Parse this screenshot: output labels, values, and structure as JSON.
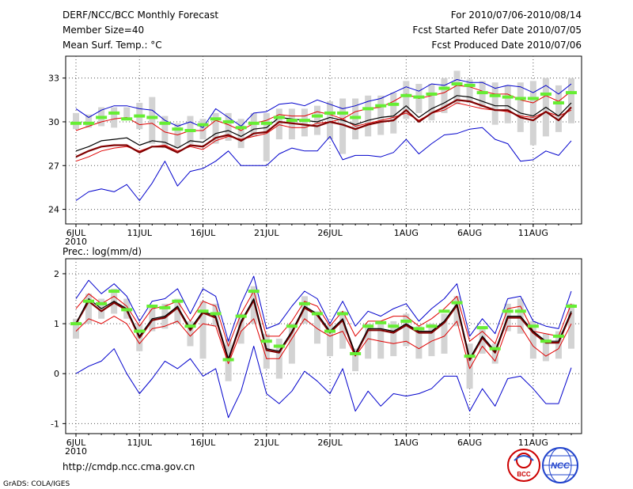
{
  "header": {
    "title": "DERF/NCC/BCC Monthly Forecast",
    "member_size": "Member Size=40",
    "variable": "Mean Surf. Temp.: °C",
    "forecast_range": "For 2010/07/06-2010/08/14",
    "started_date": "Fcst Started Refer Date 2010/07/05",
    "produced_date": "Fcst Produced Date 2010/07/06"
  },
  "footer": {
    "url": "http://cmdp.ncc.cma.gov.cn",
    "grads": "GrADS: COLA/IGES",
    "logo_bcc": "BCC",
    "logo_ncc": "NCC"
  },
  "colors": {
    "ensemble_mean": "#000000",
    "control": "#800000",
    "std_band": "#e00000",
    "min_max": "#0000cc",
    "box": "#d3d3d3",
    "climatology": "#66ee33"
  },
  "chart_data": [
    {
      "type": "line",
      "title": "Mean Surf. Temp.: °C",
      "x_dates": [
        "6JUL",
        "7JUL",
        "8JUL",
        "9JUL",
        "10JUL",
        "11JUL",
        "12JUL",
        "13JUL",
        "14JUL",
        "15JUL",
        "16JUL",
        "17JUL",
        "18JUL",
        "19JUL",
        "20JUL",
        "21JUL",
        "22JUL",
        "23JUL",
        "24JUL",
        "25JUL",
        "26JUL",
        "27JUL",
        "28JUL",
        "29JUL",
        "30JUL",
        "31JUL",
        "1AUG",
        "2AUG",
        "3AUG",
        "4AUG",
        "5AUG",
        "6AUG",
        "7AUG",
        "8AUG",
        "9AUG",
        "10AUG",
        "11AUG",
        "12AUG",
        "13AUG",
        "14AUG"
      ],
      "xtick_labels": [
        "6JUL\n2010",
        "11JUL",
        "16JUL",
        "21JUL",
        "26JUL",
        "1AUG",
        "6AUG",
        "11AUG"
      ],
      "xtick_index": [
        0,
        5,
        10,
        15,
        20,
        26,
        31,
        36
      ],
      "ylim": [
        23,
        34.5
      ],
      "yticks": [
        24,
        27,
        30,
        33
      ],
      "series": [
        {
          "name": "max",
          "values": [
            30.9,
            30.3,
            30.8,
            31.1,
            31.1,
            30.9,
            30.8,
            30.1,
            29.7,
            30.0,
            29.6,
            30.9,
            30.3,
            29.7,
            30.6,
            30.7,
            31.2,
            31.3,
            31.1,
            31.5,
            31.2,
            30.9,
            31.1,
            31.4,
            31.6,
            32.0,
            32.4,
            32.1,
            32.6,
            32.5,
            32.9,
            32.7,
            32.7,
            32.3,
            32.5,
            32.4,
            32.0,
            32.5,
            31.9,
            32.6
          ]
        },
        {
          "name": "upper",
          "values": [
            29.4,
            29.7,
            30.0,
            30.2,
            30.3,
            29.8,
            29.9,
            29.3,
            29.1,
            29.4,
            29.4,
            30.1,
            29.8,
            29.4,
            29.9,
            30.1,
            30.5,
            30.4,
            30.4,
            30.7,
            30.5,
            30.2,
            30.7,
            30.9,
            31.0,
            31.4,
            31.9,
            31.6,
            31.8,
            32.0,
            32.5,
            32.4,
            32.1,
            31.9,
            31.9,
            31.5,
            31.3,
            31.8,
            31.4,
            32.1
          ]
        },
        {
          "name": "mean",
          "values": [
            28.0,
            28.3,
            28.7,
            28.8,
            28.9,
            28.4,
            28.7,
            28.6,
            28.2,
            28.7,
            28.6,
            29.2,
            29.4,
            29.0,
            29.5,
            29.6,
            30.3,
            30.2,
            30.1,
            30.0,
            30.3,
            30.1,
            29.8,
            30.1,
            30.3,
            30.4,
            31.1,
            30.3,
            30.9,
            31.3,
            31.8,
            31.7,
            31.4,
            31.1,
            31.1,
            30.6,
            30.4,
            31.0,
            30.4,
            31.3
          ]
        },
        {
          "name": "control",
          "values": [
            27.6,
            28.0,
            28.3,
            28.4,
            28.4,
            27.9,
            28.3,
            28.3,
            27.9,
            28.4,
            28.3,
            28.9,
            29.1,
            28.7,
            29.2,
            29.3,
            30.0,
            29.9,
            29.8,
            29.7,
            30.0,
            29.8,
            29.5,
            29.8,
            30.0,
            30.1,
            30.8,
            30.0,
            30.6,
            31.0,
            31.5,
            31.4,
            31.1,
            30.8,
            30.8,
            30.3,
            30.1,
            30.7,
            30.1,
            31.0
          ]
        },
        {
          "name": "lower",
          "values": [
            27.3,
            27.6,
            28.0,
            28.2,
            28.3,
            28.0,
            28.3,
            28.4,
            28.0,
            28.3,
            28.1,
            28.7,
            29.0,
            28.8,
            29.0,
            29.2,
            29.8,
            29.6,
            29.6,
            29.9,
            30.0,
            30.2,
            29.7,
            29.9,
            30.1,
            30.3,
            30.6,
            30.1,
            30.6,
            30.8,
            31.3,
            31.1,
            30.9,
            30.8,
            30.7,
            30.4,
            30.3,
            30.7,
            30.4,
            30.8
          ]
        },
        {
          "name": "min",
          "values": [
            24.6,
            25.2,
            25.4,
            25.2,
            25.7,
            24.6,
            25.8,
            27.3,
            25.6,
            26.6,
            26.8,
            27.3,
            28.0,
            27.0,
            27.0,
            27.0,
            27.8,
            28.2,
            28.0,
            28.0,
            29.0,
            27.4,
            27.7,
            27.7,
            27.6,
            27.9,
            28.8,
            27.8,
            28.5,
            29.1,
            29.2,
            29.5,
            29.6,
            28.8,
            28.5,
            27.3,
            27.4,
            28.0,
            27.7,
            28.7
          ]
        },
        {
          "name": "clim",
          "values": [
            29.9,
            29.9,
            30.3,
            30.6,
            30.2,
            30.4,
            30.3,
            29.9,
            29.5,
            29.4,
            29.8,
            30.2,
            30.0,
            29.6,
            29.9,
            29.9,
            30.3,
            30.1,
            30.1,
            30.4,
            30.6,
            30.6,
            30.3,
            30.9,
            31.1,
            31.2,
            31.8,
            31.7,
            31.9,
            32.3,
            32.6,
            32.5,
            32.0,
            31.8,
            31.7,
            31.6,
            31.6,
            31.9,
            31.3,
            32.0
          ]
        }
      ],
      "boxes": [
        [
          29.5,
          30.6
        ],
        [
          29.6,
          30.5
        ],
        [
          29.7,
          31.0
        ],
        [
          29.6,
          31.0
        ],
        [
          30.2,
          31.0
        ],
        [
          29.5,
          31.3
        ],
        [
          28.5,
          31.7
        ],
        [
          28.2,
          30.4
        ],
        [
          28.2,
          29.9
        ],
        [
          28.5,
          30.4
        ],
        [
          28.8,
          30.2
        ],
        [
          28.5,
          30.6
        ],
        [
          28.7,
          30.6
        ],
        [
          28.2,
          30.2
        ],
        [
          29.0,
          30.6
        ],
        [
          27.3,
          30.6
        ],
        [
          28.8,
          30.9
        ],
        [
          28.8,
          30.9
        ],
        [
          29.0,
          30.9
        ],
        [
          29.1,
          31.1
        ],
        [
          28.8,
          31.4
        ],
        [
          27.8,
          31.6
        ],
        [
          28.8,
          31.6
        ],
        [
          29.0,
          31.8
        ],
        [
          29.1,
          31.8
        ],
        [
          29.2,
          32.0
        ],
        [
          30.2,
          32.8
        ],
        [
          30.6,
          32.6
        ],
        [
          30.1,
          32.6
        ],
        [
          30.6,
          33.0
        ],
        [
          31.2,
          33.5
        ],
        [
          31.3,
          32.9
        ],
        [
          31.0,
          32.8
        ],
        [
          29.8,
          32.7
        ],
        [
          29.9,
          32.5
        ],
        [
          29.3,
          32.7
        ],
        [
          28.4,
          32.8
        ],
        [
          29.0,
          33.0
        ],
        [
          29.3,
          32.5
        ],
        [
          29.9,
          33.0
        ]
      ]
    },
    {
      "type": "line",
      "title": "Prec.: log(mm/d)",
      "x_dates": [
        "6JUL",
        "7JUL",
        "8JUL",
        "9JUL",
        "10JUL",
        "11JUL",
        "12JUL",
        "13JUL",
        "14JUL",
        "15JUL",
        "16JUL",
        "17JUL",
        "18JUL",
        "19JUL",
        "20JUL",
        "21JUL",
        "22JUL",
        "23JUL",
        "24JUL",
        "25JUL",
        "26JUL",
        "27JUL",
        "28JUL",
        "29JUL",
        "30JUL",
        "31JUL",
        "1AUG",
        "2AUG",
        "3AUG",
        "4AUG",
        "5AUG",
        "6AUG",
        "7AUG",
        "8AUG",
        "9AUG",
        "10AUG",
        "11AUG",
        "12AUG",
        "13AUG",
        "14AUG"
      ],
      "xtick_labels": [
        "6JUL\n2010",
        "11JUL",
        "16JUL",
        "21JUL",
        "26JUL",
        "1AUG",
        "6AUG",
        "11AUG"
      ],
      "xtick_index": [
        0,
        5,
        10,
        15,
        20,
        26,
        31,
        36
      ],
      "ylim": [
        -1.2,
        2.3
      ],
      "yticks": [
        -1,
        0,
        1,
        2
      ],
      "series": [
        {
          "name": "max",
          "values": [
            1.5,
            1.87,
            1.6,
            1.8,
            1.55,
            1.05,
            1.45,
            1.5,
            1.7,
            1.2,
            1.7,
            1.55,
            0.65,
            1.4,
            1.95,
            0.9,
            1.0,
            1.35,
            1.65,
            1.5,
            1.0,
            1.45,
            0.95,
            1.25,
            1.15,
            1.3,
            1.4,
            1.05,
            1.3,
            1.5,
            1.8,
            0.75,
            1.1,
            0.8,
            1.5,
            1.55,
            1.05,
            0.95,
            0.9,
            1.65
          ]
        },
        {
          "name": "upper",
          "values": [
            1.3,
            1.6,
            1.4,
            1.55,
            1.35,
            0.95,
            1.3,
            1.35,
            1.45,
            1.05,
            1.45,
            1.35,
            0.55,
            1.2,
            1.65,
            0.75,
            0.75,
            1.05,
            1.45,
            1.35,
            0.95,
            1.25,
            0.75,
            1.05,
            1.05,
            1.15,
            1.15,
            0.95,
            1.1,
            1.3,
            1.55,
            0.65,
            0.85,
            0.6,
            1.3,
            1.35,
            0.85,
            0.8,
            0.75,
            1.4
          ]
        },
        {
          "name": "mean",
          "values": [
            1.0,
            1.5,
            1.3,
            1.45,
            1.3,
            0.75,
            1.1,
            1.15,
            1.35,
            0.9,
            1.25,
            1.15,
            0.3,
            1.05,
            1.5,
            0.5,
            0.45,
            0.85,
            1.35,
            1.2,
            0.85,
            1.1,
            0.4,
            0.9,
            0.9,
            0.85,
            1.0,
            0.85,
            0.85,
            1.05,
            1.4,
            0.3,
            0.75,
            0.45,
            1.15,
            1.15,
            0.85,
            0.65,
            0.65,
            1.25
          ]
        },
        {
          "name": "control",
          "values": [
            1.0,
            1.45,
            1.25,
            1.42,
            1.27,
            0.72,
            1.07,
            1.12,
            1.32,
            0.87,
            1.22,
            1.12,
            0.27,
            1.02,
            1.47,
            0.47,
            0.42,
            0.82,
            1.32,
            1.17,
            0.82,
            1.07,
            0.37,
            0.87,
            0.87,
            0.82,
            0.97,
            0.82,
            0.82,
            1.02,
            1.37,
            0.27,
            0.72,
            0.42,
            1.12,
            1.12,
            0.82,
            0.62,
            0.62,
            1.22
          ]
        },
        {
          "name": "lower",
          "values": [
            0.85,
            1.1,
            1.0,
            1.15,
            1.0,
            0.6,
            0.9,
            0.95,
            1.05,
            0.75,
            1.0,
            0.95,
            0.2,
            0.85,
            1.1,
            0.3,
            0.3,
            0.7,
            1.1,
            0.9,
            0.75,
            0.85,
            0.35,
            0.7,
            0.65,
            0.6,
            0.65,
            0.5,
            0.65,
            0.75,
            1.05,
            0.1,
            0.55,
            0.25,
            0.95,
            0.95,
            0.55,
            0.35,
            0.5,
            1.0
          ]
        },
        {
          "name": "min",
          "values": [
            0.0,
            0.15,
            0.25,
            0.5,
            0.0,
            -0.4,
            -0.1,
            0.25,
            0.1,
            0.3,
            -0.05,
            0.1,
            -0.88,
            -0.35,
            0.55,
            -0.4,
            -0.6,
            -0.35,
            0.05,
            -0.15,
            -0.4,
            0.1,
            -0.75,
            -0.35,
            -0.65,
            -0.4,
            -0.45,
            -0.4,
            -0.3,
            -0.05,
            -0.05,
            -0.75,
            -0.3,
            -0.65,
            -0.1,
            -0.05,
            -0.3,
            -0.6,
            -0.6,
            0.12
          ]
        },
        {
          "name": "clim",
          "values": [
            1.0,
            1.45,
            1.4,
            1.65,
            1.28,
            0.85,
            1.35,
            1.32,
            1.45,
            0.95,
            1.25,
            1.2,
            0.28,
            1.15,
            1.65,
            0.65,
            0.55,
            0.95,
            1.4,
            1.2,
            0.85,
            1.2,
            0.4,
            0.95,
            1.02,
            0.95,
            1.05,
            0.9,
            0.95,
            1.25,
            1.42,
            0.35,
            0.92,
            0.5,
            1.25,
            1.25,
            0.95,
            0.65,
            0.75,
            1.35
          ]
        }
      ],
      "boxes": [
        [
          0.7,
          1.1
        ],
        [
          1.0,
          1.6
        ],
        [
          1.1,
          1.5
        ],
        [
          1.2,
          1.7
        ],
        [
          1.1,
          1.5
        ],
        [
          0.45,
          1.0
        ],
        [
          0.85,
          1.35
        ],
        [
          0.9,
          1.4
        ],
        [
          1.0,
          1.5
        ],
        [
          0.55,
          1.05
        ],
        [
          0.3,
          1.45
        ],
        [
          0.95,
          1.4
        ],
        [
          -0.15,
          0.7
        ],
        [
          0.6,
          1.2
        ],
        [
          1.0,
          1.75
        ],
        [
          0.1,
          0.8
        ],
        [
          -0.1,
          0.7
        ],
        [
          0.2,
          1.0
        ],
        [
          1.0,
          1.55
        ],
        [
          0.6,
          1.25
        ],
        [
          0.35,
          1.0
        ],
        [
          0.5,
          1.25
        ],
        [
          0.05,
          0.5
        ],
        [
          0.3,
          1.0
        ],
        [
          0.3,
          1.0
        ],
        [
          0.35,
          1.05
        ],
        [
          0.55,
          1.2
        ],
        [
          0.3,
          0.95
        ],
        [
          0.35,
          1.0
        ],
        [
          0.4,
          1.2
        ],
        [
          0.95,
          1.55
        ],
        [
          -0.3,
          0.6
        ],
        [
          0.4,
          0.95
        ],
        [
          0.2,
          0.6
        ],
        [
          0.85,
          1.4
        ],
        [
          0.8,
          1.5
        ],
        [
          0.3,
          1.05
        ],
        [
          0.25,
          0.8
        ],
        [
          0.3,
          0.85
        ],
        [
          0.5,
          1.4
        ]
      ]
    }
  ]
}
